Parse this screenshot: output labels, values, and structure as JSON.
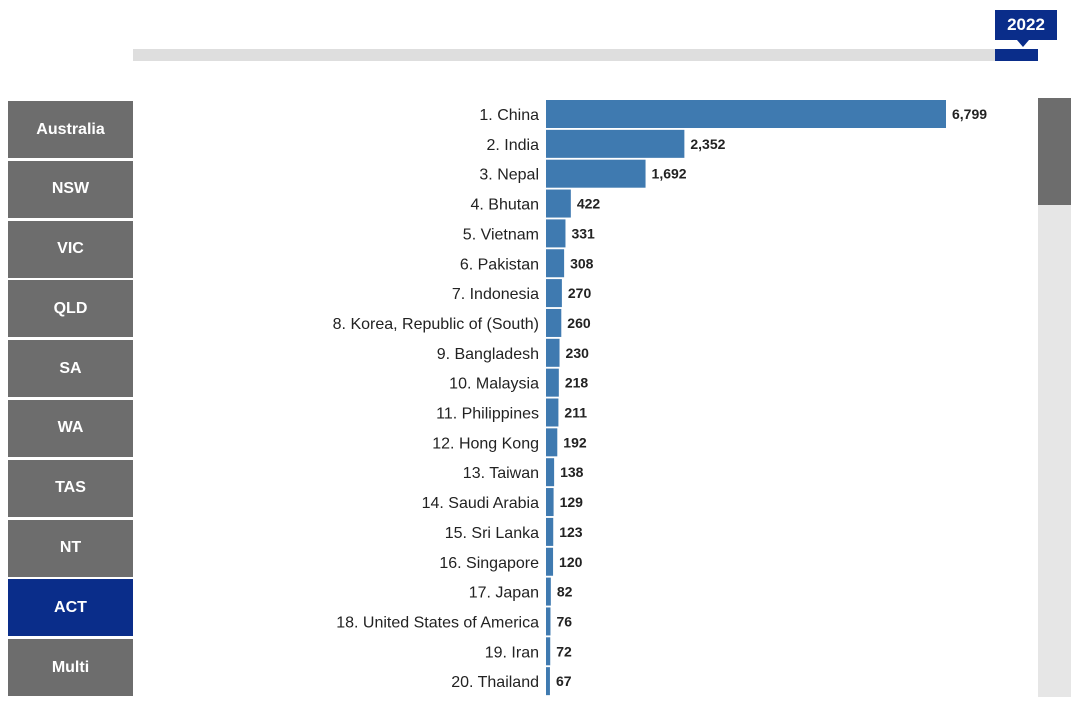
{
  "timeline": {
    "selected_year": "2022"
  },
  "regions": [
    {
      "label": "Australia",
      "active": false
    },
    {
      "label": "NSW",
      "active": false
    },
    {
      "label": "VIC",
      "active": false
    },
    {
      "label": "QLD",
      "active": false
    },
    {
      "label": "SA",
      "active": false
    },
    {
      "label": "WA",
      "active": false
    },
    {
      "label": "TAS",
      "active": false
    },
    {
      "label": "NT",
      "active": false
    },
    {
      "label": "ACT",
      "active": true
    },
    {
      "label": "Multi",
      "active": false
    }
  ],
  "colors": {
    "bar": "#3f7ab0",
    "active_region": "#0a2d8a",
    "inactive_region": "#6d6d6d"
  },
  "chart_data": {
    "type": "bar",
    "orientation": "horizontal",
    "categories": [
      "1. China",
      "2. India",
      "3. Nepal",
      "4. Bhutan",
      "5. Vietnam",
      "6. Pakistan",
      "7. Indonesia",
      "8. Korea, Republic of (South)",
      "9. Bangladesh",
      "10. Malaysia",
      "11. Philippines",
      "12. Hong Kong",
      "13. Taiwan",
      "14. Saudi Arabia",
      "15. Sri Lanka",
      "16. Singapore",
      "17. Japan",
      "18. United States of America",
      "19. Iran",
      "20. Thailand"
    ],
    "values": [
      6799,
      2352,
      1692,
      422,
      331,
      308,
      270,
      260,
      230,
      218,
      211,
      192,
      138,
      129,
      123,
      120,
      82,
      76,
      72,
      67
    ],
    "value_labels": [
      "6,799",
      "2,352",
      "1,692",
      "422",
      "331",
      "308",
      "270",
      "260",
      "230",
      "218",
      "211",
      "192",
      "138",
      "129",
      "123",
      "120",
      "82",
      "76",
      "72",
      "67"
    ],
    "title": "",
    "xlabel": "",
    "ylabel": "",
    "grid": false
  }
}
